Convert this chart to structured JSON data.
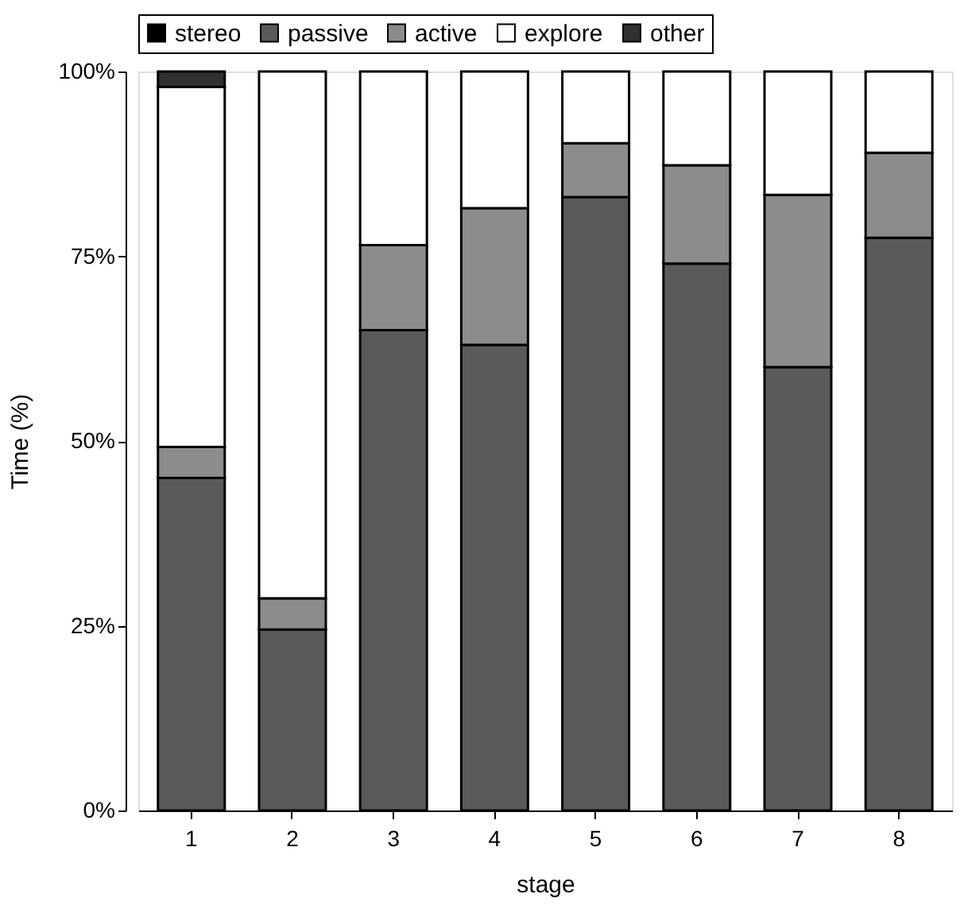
{
  "chart_data": {
    "type": "bar",
    "stacked": true,
    "xlabel": "stage",
    "ylabel": "Time (%)",
    "categories": [
      "1",
      "2",
      "3",
      "4",
      "5",
      "6",
      "7",
      "8"
    ],
    "series": [
      {
        "name": "stereo",
        "color": "#000000",
        "values": [
          0,
          0,
          0,
          0,
          0,
          0,
          0,
          0
        ]
      },
      {
        "name": "passive",
        "color": "#5a5a5a",
        "values": [
          45,
          24.5,
          65,
          63,
          83,
          74,
          60,
          77.5
        ]
      },
      {
        "name": "active",
        "color": "#8c8c8c",
        "values": [
          4.2,
          4.2,
          11.5,
          18.5,
          7.3,
          13.3,
          23.3,
          11.5
        ]
      },
      {
        "name": "explore",
        "color": "#ffffff",
        "values": [
          48.7,
          71.3,
          23.5,
          18.5,
          9.7,
          12.7,
          16.7,
          11
        ]
      },
      {
        "name": "other",
        "color": "#303030",
        "values": [
          2.1,
          0,
          0,
          0,
          0,
          0,
          0,
          0
        ]
      }
    ],
    "ylim": [
      0,
      100
    ],
    "yticks": [
      {
        "value": 0,
        "label": "0%"
      },
      {
        "value": 25,
        "label": "25%"
      },
      {
        "value": 50,
        "label": "50%"
      },
      {
        "value": 75,
        "label": "75%"
      },
      {
        "value": 100,
        "label": "100%"
      }
    ],
    "grid": false,
    "legend": "top"
  }
}
